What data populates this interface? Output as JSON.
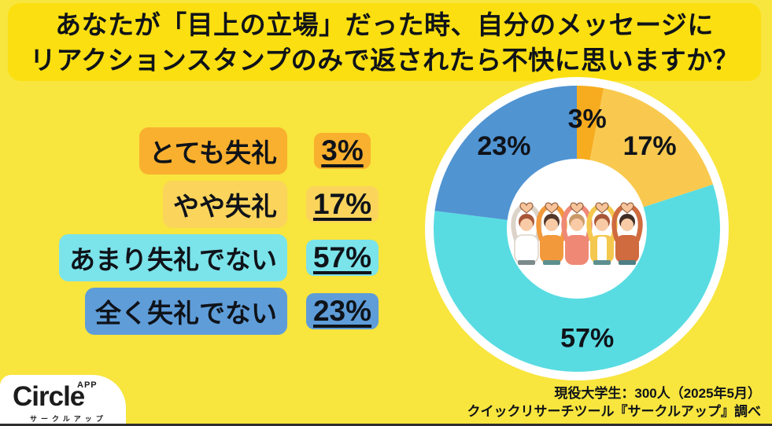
{
  "colors": {
    "page_background": "#F8E53E",
    "banner_background": "#FBDF10",
    "text": "#0F1319",
    "ring": "#FFFFFF"
  },
  "header": {
    "line1": "あなたが「目上の立場」だった時、自分のメッセージに",
    "line2": "リアクションスタンプのみで返されたら不快に思いますか？"
  },
  "legend": {
    "items": [
      {
        "label": "とても失礼",
        "value": "3%",
        "highlight": "#F9B02E"
      },
      {
        "label": "やや失礼",
        "value": "17%",
        "highlight": "#FBD45C"
      },
      {
        "label": "あまり失礼でない",
        "value": "57%",
        "highlight": "#7BE3EA"
      },
      {
        "label": "全く失礼でない",
        "value": "23%",
        "highlight": "#5F9DD9"
      }
    ]
  },
  "chart_data": {
    "type": "pie",
    "donut": true,
    "title": "あなたが「目上の立場」だった時、自分のメッセージにリアクションスタンプのみで返されたら不快に思いますか？",
    "categories": [
      "とても失礼",
      "やや失礼",
      "あまり失礼でない",
      "全く失礼でない"
    ],
    "values": [
      3,
      17,
      57,
      23
    ],
    "unit": "%",
    "labels": [
      "3%",
      "17%",
      "57%",
      "23%"
    ],
    "slice_colors": [
      "#F7AC1F",
      "#F9C94F",
      "#58DCE2",
      "#5094D2"
    ],
    "start_angle_deg": 0,
    "direction": "clockwise",
    "outer_radius": 182,
    "inner_radius": 89,
    "ring_radius": 193,
    "center_illustration": "five-people-heart-arms"
  },
  "footer": {
    "logo": {
      "name": "Circle",
      "badge": "APP",
      "subtitle": "サークルアップ"
    },
    "source_line1": "現役大学生：300人（2025年5月）",
    "source_line2": "クイックリサーチツール『サークルアップ』調べ"
  }
}
